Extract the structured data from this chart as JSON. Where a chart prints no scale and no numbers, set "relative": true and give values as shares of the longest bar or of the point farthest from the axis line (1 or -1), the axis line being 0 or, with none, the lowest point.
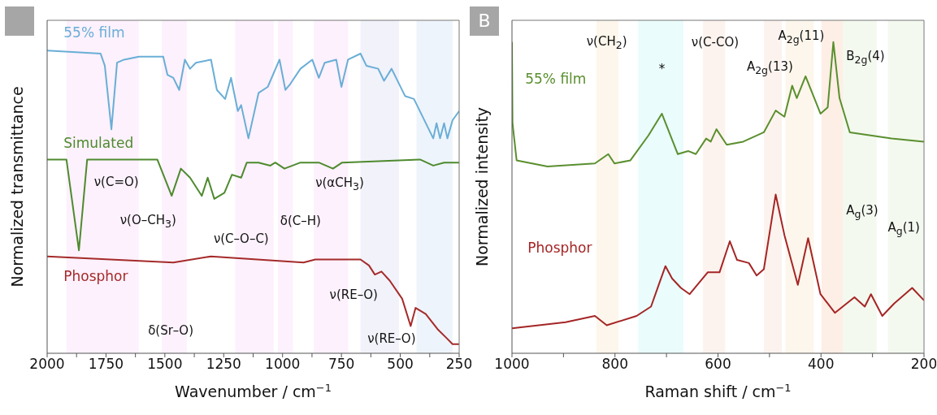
{
  "chart_data": [
    {
      "type": "line",
      "relative": true,
      "xlabel": "Wavenumber / cm$^{−1}$",
      "ylabel": "Normalized transmittance",
      "xlim": [
        2000,
        250
      ],
      "xticks": [
        2000,
        {
          "value": 1875,
          "label": null
        },
        1750,
        {
          "value": 1625,
          "label": null
        },
        1500,
        {
          "value": 1375,
          "label": null
        },
        1250,
        {
          "value": 1125,
          "label": null
        },
        1000,
        {
          "value": 875,
          "label": null
        },
        750,
        {
          "value": 625,
          "label": null
        },
        500,
        {
          "value": 375,
          "label": null
        },
        250
      ],
      "tick_labels": "x",
      "marker": "none",
      "line_style": "solid",
      "series": [
        {
          "name": "55% film",
          "color": "#6aaed6",
          "x": [
            2000,
            1773,
            1755,
            1727,
            1703,
            1673,
            1610,
            1507,
            1489,
            1464,
            1439,
            1415,
            1393,
            1368,
            1304,
            1279,
            1244,
            1219,
            1190,
            1176,
            1145,
            1102,
            1063,
            1013,
            988,
            967,
            924,
            874,
            846,
            821,
            772,
            750,
            722,
            669,
            644,
            594,
            569,
            537,
            480,
            442,
            360,
            346,
            331,
            314,
            300,
            278,
            250
          ],
          "values": [
            1.0,
            0.99,
            0.95,
            0.74,
            0.96,
            0.97,
            0.98,
            0.98,
            0.92,
            0.91,
            0.87,
            0.97,
            0.94,
            0.96,
            0.97,
            0.87,
            0.84,
            0.91,
            0.8,
            0.82,
            0.71,
            0.86,
            0.88,
            0.97,
            0.87,
            0.89,
            0.94,
            0.97,
            0.91,
            0.96,
            0.97,
            0.88,
            0.97,
            0.99,
            0.95,
            0.94,
            0.9,
            0.94,
            0.85,
            0.84,
            0.71,
            0.76,
            0.71,
            0.76,
            0.71,
            0.77,
            0.8
          ]
        },
        {
          "name": "Simulated",
          "color": "#4e8a2e",
          "x": [
            2000,
            1918,
            1865,
            1830,
            1532,
            1471,
            1432,
            1393,
            1343,
            1318,
            1290,
            1247,
            1215,
            1176,
            1152,
            1102,
            1052,
            1031,
            992,
            924,
            846,
            786,
            747,
            416,
            360,
            314,
            250
          ],
          "values": [
            0.64,
            0.64,
            0.34,
            0.64,
            0.64,
            0.52,
            0.61,
            0.58,
            0.52,
            0.58,
            0.51,
            0.53,
            0.59,
            0.58,
            0.63,
            0.63,
            0.62,
            0.63,
            0.61,
            0.63,
            0.63,
            0.61,
            0.63,
            0.64,
            0.62,
            0.63,
            0.63
          ]
        },
        {
          "name": "Phosphor",
          "color": "#a52a2a",
          "x": [
            2000,
            1464,
            1304,
            911,
            861,
            669,
            633,
            608,
            580,
            545,
            492,
            456,
            435,
            392,
            342,
            303,
            278,
            250
          ],
          "values": [
            0.32,
            0.3,
            0.32,
            0.3,
            0.31,
            0.31,
            0.29,
            0.26,
            0.27,
            0.24,
            0.18,
            0.09,
            0.15,
            0.13,
            0.08,
            0.05,
            0.03,
            0.03
          ]
        }
      ],
      "bands": [
        {
          "axis": "x",
          "from": 1918,
          "to": 1611,
          "color": "#fcf1fc"
        },
        {
          "axis": "x",
          "from": 1513,
          "to": 1407,
          "color": "#fcf1fc"
        },
        {
          "axis": "x",
          "from": 1201,
          "to": 1038,
          "color": "#fcf1fc"
        },
        {
          "axis": "x",
          "from": 1020,
          "to": 956,
          "color": "#fcf1fc"
        },
        {
          "axis": "x",
          "from": 867,
          "to": 722,
          "color": "#fcf1fc"
        },
        {
          "axis": "x",
          "from": 669,
          "to": 506,
          "color": "#f1f2fa"
        },
        {
          "axis": "x",
          "from": 431,
          "to": 278,
          "color": "#eef4fb"
        }
      ],
      "annotations": [
        "ν(C=O)",
        "ν(O–CH$_{3}$)",
        "ν(C–O–C)",
        "δ(C–H)",
        "ν(αCH$_{3}$)",
        "δ(Sr–O)",
        "ν(RE–O)",
        "ν(RE–O)"
      ]
    },
    {
      "type": "line",
      "relative": true,
      "title": "B",
      "xlabel": "Raman shift / cm$^{−1}$",
      "ylabel": "Normalized intensity",
      "xlim": [
        1000,
        200
      ],
      "xticks": [
        1000,
        {
          "value": 900,
          "label": null
        },
        800,
        {
          "value": 700,
          "label": null
        },
        600,
        {
          "value": 500,
          "label": null
        },
        400,
        {
          "value": 300,
          "label": null
        },
        200
      ],
      "tick_labels": "x",
      "marker": "none",
      "line_style": "solid",
      "series": [
        {
          "name": "55% film",
          "color": "#5a8f2e",
          "x": [
            1000,
            999,
            991,
            931,
            839,
            813,
            801,
            770,
            735,
            709,
            678,
            658,
            643,
            623,
            614,
            603,
            583,
            551,
            511,
            488,
            471,
            456,
            447,
            430,
            401,
            387,
            376,
            364,
            344,
            263,
            200
          ],
          "values": [
            1.0,
            0.74,
            0.62,
            0.6,
            0.61,
            0.64,
            0.61,
            0.62,
            0.7,
            0.77,
            0.64,
            0.65,
            0.64,
            0.69,
            0.68,
            0.72,
            0.67,
            0.68,
            0.71,
            0.78,
            0.76,
            0.86,
            0.82,
            0.89,
            0.77,
            0.79,
            1.0,
            0.82,
            0.71,
            0.69,
            0.68
          ]
        },
        {
          "name": "Phosphor",
          "color": "#a52525",
          "x": [
            1000,
            896,
            839,
            816,
            758,
            730,
            715,
            702,
            689,
            672,
            655,
            620,
            597,
            577,
            563,
            540,
            525,
            511,
            488,
            471,
            445,
            425,
            401,
            373,
            335,
            315,
            303,
            281,
            258,
            223,
            200
          ],
          "values": [
            0.08,
            0.1,
            0.12,
            0.09,
            0.12,
            0.15,
            0.22,
            0.28,
            0.24,
            0.21,
            0.19,
            0.26,
            0.26,
            0.36,
            0.3,
            0.29,
            0.25,
            0.27,
            0.51,
            0.38,
            0.22,
            0.37,
            0.19,
            0.13,
            0.18,
            0.15,
            0.19,
            0.12,
            0.16,
            0.21,
            0.17
          ]
        }
      ],
      "bands": [
        {
          "axis": "x",
          "from": 836,
          "to": 793,
          "color": "#fdf6ec"
        },
        {
          "axis": "x",
          "from": 755,
          "to": 667,
          "color": "#eafcfc"
        },
        {
          "axis": "x",
          "from": 629,
          "to": 586,
          "color": "#fdf3ee"
        },
        {
          "axis": "x",
          "from": 511,
          "to": 476,
          "color": "#fdf3ee"
        },
        {
          "axis": "x",
          "from": 469,
          "to": 414,
          "color": "#fdf6ec"
        },
        {
          "axis": "x",
          "from": 399,
          "to": 355,
          "color": "#fdeee6"
        },
        {
          "axis": "x",
          "from": 358,
          "to": 292,
          "color": "#f3f9ef"
        },
        {
          "axis": "x",
          "from": 270,
          "to": 201,
          "color": "#f3f9ef"
        }
      ],
      "annotations": [
        "ν(CH$_{2}$)",
        "*",
        "ν(C-CO)",
        "A$_{2g}$(13)",
        "A$_{2g}$(11)",
        "B$_{2g}$(4)",
        "A$_{g}$(3)",
        "A$_{g}$(1)"
      ]
    }
  ]
}
